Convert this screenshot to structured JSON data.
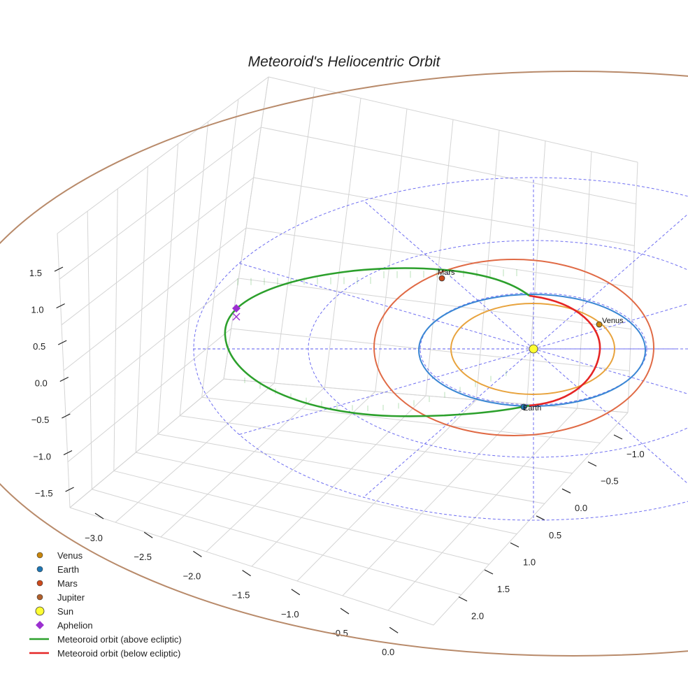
{
  "chart_data": {
    "type": "3d-orbit",
    "title": "Meteoroid's Heliocentric Orbit",
    "x_axis_ticks": [
      "−3.0",
      "−2.5",
      "−2.0",
      "−1.5",
      "−1.0",
      "−0.5",
      "0.0"
    ],
    "y_axis_ticks": [
      "−1.0",
      "−0.5",
      "0.0",
      "0.5",
      "1.0",
      "1.5",
      "2.0"
    ],
    "z_axis_ticks": [
      "1.5",
      "1.0",
      "0.5",
      "0.0",
      "−0.5",
      "−1.0",
      "−1.5"
    ],
    "xlim": [
      -3.3,
      0.2
    ],
    "ylim": [
      -1.3,
      2.3
    ],
    "zlim": [
      -1.8,
      1.8
    ],
    "bodies": [
      {
        "name": "Venus",
        "label": "Venus",
        "semi_major_axis_au": 0.72,
        "color": "#e8a33d"
      },
      {
        "name": "Earth",
        "label": "Earth",
        "semi_major_axis_au": 1.0,
        "color": "#3a87d4"
      },
      {
        "name": "Mars",
        "label": "Mars",
        "semi_major_axis_au": 1.52,
        "color": "#e06a45"
      },
      {
        "name": "Jupiter",
        "label": "",
        "semi_major_axis_au": 5.2,
        "color": "#b88a6a"
      }
    ],
    "sun": {
      "name": "Sun",
      "position": [
        0,
        0,
        0
      ],
      "color": "#ffff33"
    },
    "meteoroid_orbit": {
      "perihelion_au": 0.9,
      "aphelion_au": 3.1,
      "segments": [
        "above ecliptic",
        "below ecliptic"
      ],
      "above_color": "#2ca02c",
      "below_color": "#e52525"
    },
    "aphelion_marker_color": "#9b30d0",
    "reference_grid_color": "#5555ee",
    "legend": [
      {
        "label": "Venus",
        "marker": "circle",
        "color": "#c8860c"
      },
      {
        "label": "Earth",
        "marker": "circle",
        "color": "#1f77b4"
      },
      {
        "label": "Mars",
        "marker": "circle",
        "color": "#cc4a1c"
      },
      {
        "label": "Jupiter",
        "marker": "circle",
        "color": "#b0602c"
      },
      {
        "label": "Sun",
        "marker": "big-circle",
        "color": "#ffff33"
      },
      {
        "label": "Aphelion",
        "marker": "diamond",
        "color": "#9b30d0"
      },
      {
        "label": "Meteoroid orbit (above ecliptic)",
        "marker": "line",
        "color": "#2ca02c"
      },
      {
        "label": "Meteoroid orbit (below ecliptic)",
        "marker": "line",
        "color": "#e52525"
      }
    ]
  }
}
